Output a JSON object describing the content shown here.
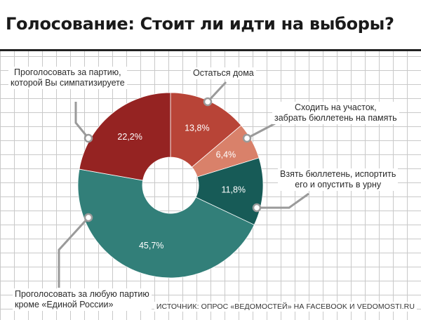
{
  "title": "Голосование: Стоит ли идти на выборы?",
  "source": "ИСТОЧНИК: ОПРОС «ВЕДОМОСТЕЙ» НА FACEBOOK И VEDOMOSTI.RU",
  "chart_data": {
    "type": "pie",
    "title": "Голосование: Стоит ли идти на выборы?",
    "slices": [
      {
        "label": "Остаться дома",
        "value": 13.8,
        "value_label": "13,8%",
        "color": "#b84437"
      },
      {
        "label": "Сходить на участок, забрать бюллетень на память",
        "value": 6.4,
        "value_label": "6,4%",
        "color": "#d9816a"
      },
      {
        "label": "Взять бюллетень, испортить его и опустить в урну",
        "value": 11.8,
        "value_label": "11,8%",
        "color": "#175b57"
      },
      {
        "label": "Проголосовать за любую партию кроме «Единой России»",
        "value": 45.7,
        "value_label": "45,7%",
        "color": "#327f79"
      },
      {
        "label": "Проголосовать за партию, которой Вы симпатизируете",
        "value": 22.2,
        "value_label": "22,2%",
        "color": "#952322"
      }
    ],
    "legend": "leader-labels"
  },
  "labels": {
    "stay_home": "Остаться дома",
    "souvenir_1": "Сходить на участок,",
    "souvenir_2": "забрать бюллетень на память",
    "spoil_1": "Взять бюллетень, испортить",
    "spoil_2": "его и опустить в урну",
    "sympathize_1": "Проголосовать за партию,",
    "sympathize_2": "которой Вы симпатизируете",
    "any_party_1": "Проголосовать за любую партию",
    "any_party_2": "кроме «Единой России»"
  }
}
